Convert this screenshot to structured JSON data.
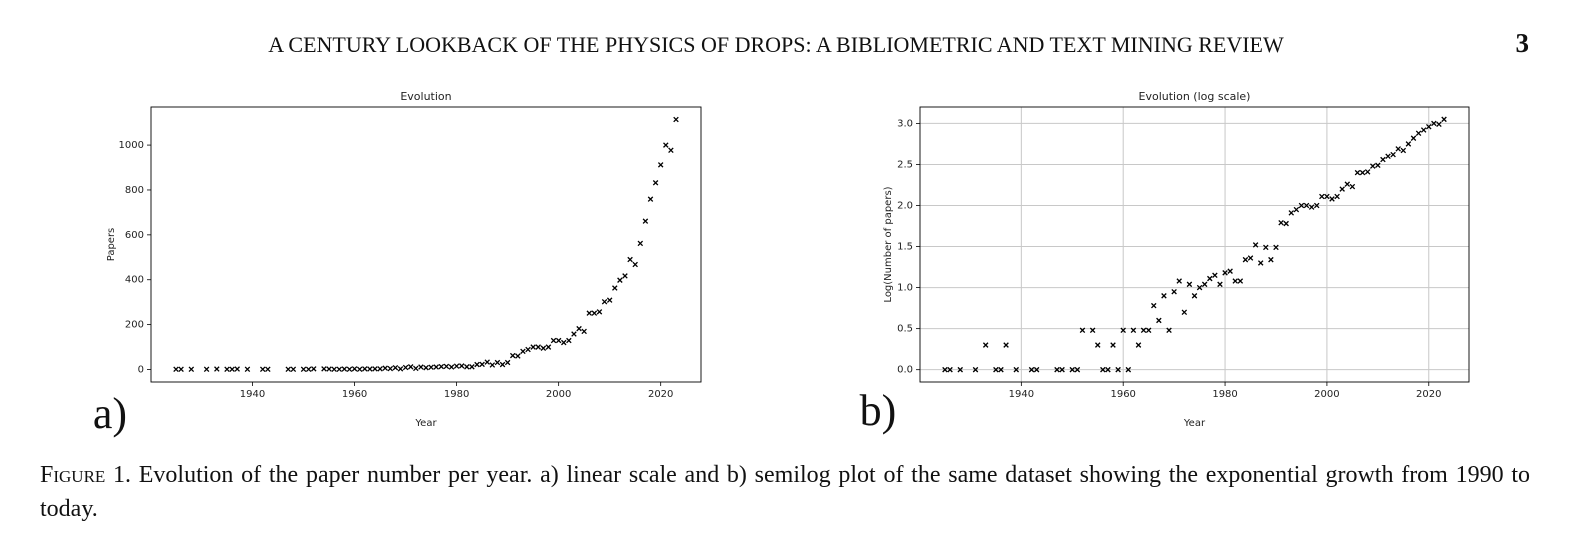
{
  "header": {
    "title": "A CENTURY LOOKBACK OF THE PHYSICS OF DROPS: A BIBLIOMETRIC AND TEXT MINING REVIEW",
    "page_number": "3"
  },
  "chart_data": [
    {
      "type": "scatter",
      "title": "Evolution",
      "x_label": "Year",
      "y_label": "Papers",
      "color": "#000000",
      "grid": false,
      "x": [
        1925,
        1926,
        1928,
        1931,
        1933,
        1935,
        1936,
        1937,
        1939,
        1942,
        1943,
        1947,
        1948,
        1950,
        1951,
        1952,
        1954,
        1955,
        1956,
        1957,
        1958,
        1959,
        1960,
        1961,
        1962,
        1963,
        1964,
        1965,
        1966,
        1967,
        1968,
        1969,
        1970,
        1971,
        1972,
        1973,
        1974,
        1975,
        1976,
        1977,
        1978,
        1979,
        1980,
        1981,
        1982,
        1983,
        1984,
        1985,
        1986,
        1987,
        1988,
        1989,
        1990,
        1991,
        1992,
        1993,
        1994,
        1995,
        1996,
        1997,
        1998,
        1999,
        2000,
        2001,
        2002,
        2003,
        2004,
        2005,
        2006,
        2007,
        2008,
        2009,
        2010,
        2011,
        2012,
        2013,
        2014,
        2015,
        2016,
        2017,
        2018,
        2019,
        2020,
        2021,
        2022,
        2023
      ],
      "values": [
        1,
        1,
        1,
        1,
        2,
        1,
        1,
        2,
        1,
        1,
        1,
        1,
        1,
        1,
        1,
        3,
        3,
        2,
        1,
        1,
        2,
        1,
        3,
        1,
        3,
        2,
        3,
        3,
        6,
        4,
        8,
        3,
        9,
        12,
        5,
        11,
        8,
        10,
        11,
        13,
        14,
        11,
        15,
        16,
        12,
        12,
        22,
        23,
        33,
        20,
        31,
        22,
        31,
        62,
        60,
        81,
        89,
        100,
        100,
        95,
        100,
        129,
        129,
        120,
        129,
        158,
        182,
        170,
        251,
        251,
        257,
        302,
        309,
        363,
        398,
        417,
        490,
        468,
        562,
        661,
        759,
        832,
        912,
        1000,
        977,
        1114
      ],
      "xlim": [
        1920.1,
        2027.9
      ],
      "xticks": [
        1940,
        1960,
        1980,
        2000,
        2020
      ],
      "ylim": [
        -55.7,
        1169.7
      ],
      "yticks": [
        0,
        200,
        400,
        600,
        800,
        1000
      ]
    },
    {
      "type": "scatter",
      "title": "Evolution (log scale)",
      "x_label": "Year",
      "y_label": "Log(Number of papers)",
      "color": "#000000",
      "grid": true,
      "x": [
        1925,
        1926,
        1928,
        1931,
        1933,
        1935,
        1936,
        1937,
        1939,
        1942,
        1943,
        1947,
        1948,
        1950,
        1951,
        1952,
        1954,
        1955,
        1956,
        1957,
        1958,
        1959,
        1960,
        1961,
        1962,
        1963,
        1964,
        1965,
        1966,
        1967,
        1968,
        1969,
        1970,
        1971,
        1972,
        1973,
        1974,
        1975,
        1976,
        1977,
        1978,
        1979,
        1980,
        1981,
        1982,
        1983,
        1984,
        1985,
        1986,
        1987,
        1988,
        1989,
        1990,
        1991,
        1992,
        1993,
        1994,
        1995,
        1996,
        1997,
        1998,
        1999,
        2000,
        2001,
        2002,
        2003,
        2004,
        2005,
        2006,
        2007,
        2008,
        2009,
        2010,
        2011,
        2012,
        2013,
        2014,
        2015,
        2016,
        2017,
        2018,
        2019,
        2020,
        2021,
        2022,
        2023
      ],
      "values": [
        0,
        0,
        0,
        0,
        0.3,
        0,
        0,
        0.3,
        0,
        0,
        0,
        0,
        0,
        0,
        0,
        0.48,
        0.48,
        0.3,
        0,
        0,
        0.3,
        0,
        0.48,
        0,
        0.48,
        0.3,
        0.48,
        0.48,
        0.78,
        0.6,
        0.9,
        0.48,
        0.95,
        1.08,
        0.7,
        1.04,
        0.9,
        1.0,
        1.04,
        1.11,
        1.15,
        1.04,
        1.18,
        1.2,
        1.08,
        1.08,
        1.34,
        1.36,
        1.52,
        1.3,
        1.49,
        1.34,
        1.49,
        1.79,
        1.78,
        1.91,
        1.95,
        2.0,
        2.0,
        1.98,
        2.0,
        2.11,
        2.11,
        2.08,
        2.11,
        2.2,
        2.26,
        2.23,
        2.4,
        2.4,
        2.41,
        2.48,
        2.49,
        2.56,
        2.6,
        2.62,
        2.69,
        2.67,
        2.75,
        2.82,
        2.88,
        2.92,
        2.96,
        3.0,
        2.99,
        3.05
      ],
      "xlim": [
        1920.1,
        2027.9
      ],
      "xticks": [
        1940,
        1960,
        1980,
        2000,
        2020
      ],
      "ylim": [
        -0.15,
        3.2
      ],
      "yticks": [
        {
          "value": 0,
          "label": "0.0"
        },
        0.5,
        {
          "value": 1,
          "label": "1.0"
        },
        1.5,
        {
          "value": 2,
          "label": "2.0"
        },
        2.5,
        {
          "value": 3,
          "label": "3.0"
        }
      ]
    }
  ],
  "panel_labels": [
    "a)",
    "b)"
  ],
  "caption": {
    "label": "Figure 1.",
    "text": "Evolution of the paper number per year. a) linear scale and b) semilog plot of the same dataset showing the exponential growth from 1990 to today."
  }
}
